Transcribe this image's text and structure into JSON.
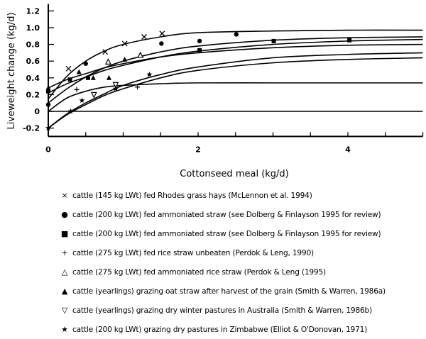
{
  "chart_data": {
    "type": "scatter",
    "xlabel": "Cottonseed meal (kg/d)",
    "ylabel": "Liveweight change (kg/d)",
    "xlim": [
      0,
      5
    ],
    "ylim": [
      -0.3,
      1.3
    ],
    "x_ticks": [
      "0",
      "2",
      "4"
    ],
    "x_tick_values": [
      0,
      2,
      4
    ],
    "y_ticks": [
      "-0.2",
      "0",
      "0.2",
      "0.4",
      "0.6",
      "0.8",
      "1.0",
      "1.2"
    ],
    "y_tick_values": [
      -0.2,
      0,
      0.2,
      0.4,
      0.6,
      0.8,
      1.0,
      1.2
    ],
    "grid": false,
    "legend_position": "bottom",
    "curve_x": [
      0,
      0.25,
      0.5,
      0.75,
      1,
      1.5,
      2,
      3,
      4,
      5
    ],
    "curves": [
      [
        0.15,
        0.42,
        0.6,
        0.72,
        0.8,
        0.89,
        0.94,
        0.96,
        0.97,
        0.97
      ],
      [
        0.1,
        0.27,
        0.41,
        0.52,
        0.6,
        0.71,
        0.78,
        0.85,
        0.88,
        0.89
      ],
      [
        0.22,
        0.33,
        0.41,
        0.49,
        0.55,
        0.65,
        0.72,
        0.8,
        0.84,
        0.86
      ],
      [
        0.28,
        0.38,
        0.45,
        0.52,
        0.57,
        0.65,
        0.7,
        0.76,
        0.79,
        0.8
      ],
      [
        -0.2,
        -0.03,
        0.1,
        0.21,
        0.31,
        0.44,
        0.53,
        0.64,
        0.68,
        0.7
      ],
      [
        -0.2,
        -0.04,
        0.08,
        0.19,
        0.27,
        0.4,
        0.49,
        0.58,
        0.62,
        0.64
      ],
      [
        0.0,
        0.16,
        0.24,
        0.29,
        0.31,
        0.33,
        0.34,
        0.34,
        0.34,
        0.34
      ],
      [
        0.0,
        0.0,
        0.0,
        0.0,
        0.0,
        0.0,
        0.0,
        0.0,
        0.0,
        0.0
      ]
    ],
    "series": [
      {
        "symbol": "×",
        "marker": "x",
        "name": "cattle (145 kg LWt) fed Rhodes grass hays (McLennon et al. 1994)",
        "x": [
          0.27,
          0.76,
          1.02,
          1.28,
          1.52
        ],
        "y": [
          0.51,
          0.71,
          0.81,
          0.89,
          0.93
        ]
      },
      {
        "symbol": "●",
        "marker": "circle",
        "name": "cattle (200 kg LWt) fed ammoniated straw (see Dolberg & Finlayson 1995 for review)",
        "x": [
          0,
          0.5,
          1.51,
          2.02,
          2.51
        ],
        "y": [
          0.08,
          0.57,
          0.81,
          0.84,
          0.92
        ]
      },
      {
        "symbol": "■",
        "marker": "square",
        "name": "cattle (200 kg LWt) fed ammoniated straw (see Dolberg & Finlayson 1995 for review)",
        "x": [
          0,
          0.29,
          0.53,
          2.02,
          3.01,
          4.02
        ],
        "y": [
          0.24,
          0.38,
          0.4,
          0.73,
          0.84,
          0.85
        ]
      },
      {
        "symbol": "+",
        "marker": "plus",
        "name": "cattle (275 kg LWt) fed rice straw unbeaten (Perdok & Leng, 1990)",
        "x": [
          0.38,
          1.19
        ],
        "y": [
          0.26,
          0.29
        ]
      },
      {
        "symbol": "△",
        "marker": "triangle-open",
        "name": "cattle (275 kg LWt) fed ammoniated rice straw (Perdok & Leng (1995)",
        "x": [
          0.8,
          1.23
        ],
        "y": [
          0.59,
          0.67
        ]
      },
      {
        "symbol": "▲",
        "marker": "triangle",
        "name": "cattle (yearlings) grazing oat straw after harvest of the grain (Smith & Warren, 1986a)",
        "x": [
          0,
          0.41,
          0.6,
          0.81,
          1.02
        ],
        "y": [
          0.28,
          0.47,
          0.4,
          0.4,
          0.62
        ]
      },
      {
        "symbol": "▽",
        "marker": "triangle-down-open",
        "name": "cattle (yearlings) grazing dry winter pastures in Australia (Smith & Warren, 1986b)",
        "x": [
          0.61,
          0.9
        ],
        "y": [
          0.2,
          0.32
        ]
      },
      {
        "symbol": "★",
        "marker": "star",
        "name": "cattle (200 kg LWt) grazing dry pastures in Zimbabwe (Elliot & O'Donovan, 1971)",
        "x": [
          0,
          0.3,
          0.45,
          0.9,
          1.35
        ],
        "y": [
          -0.2,
          0.0,
          0.13,
          0.27,
          0.44
        ]
      }
    ]
  }
}
